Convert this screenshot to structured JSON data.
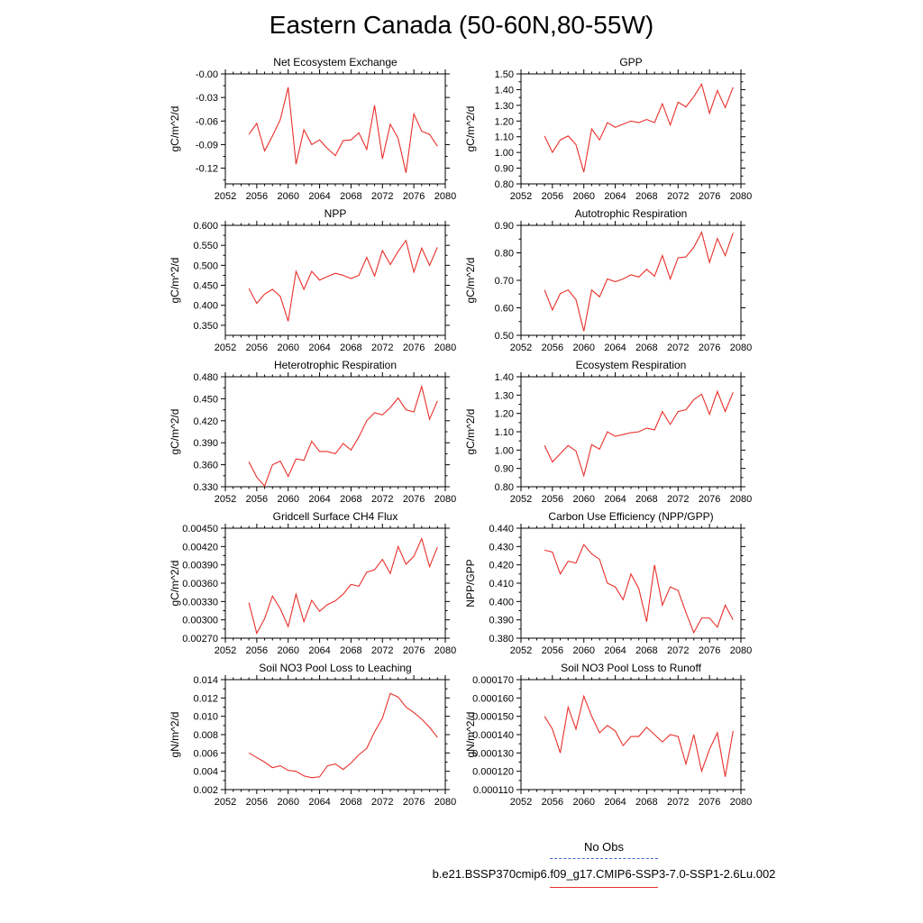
{
  "title": "Eastern Canada (50-60N,80-55W)",
  "legend": {
    "obs_label": "No Obs",
    "obs_color": "#4466dd",
    "run_label": "b.e21.BSSP370cmip6.f09_g17.CMIP6-SSP3-7.0-SSP1-2.6Lu.002",
    "run_color": "#e8302a"
  },
  "chart_data": [
    {
      "type": "line",
      "title": "Net Ecosystem Exchange",
      "ylabel": "gC/m^2/d",
      "xlim": [
        2052,
        2080
      ],
      "xticks": [
        "2052",
        "2056",
        "2060",
        "2064",
        "2068",
        "2072",
        "2076",
        "2080"
      ],
      "ylim": [
        -0.14,
        0.0
      ],
      "yticks": [
        "-0.12",
        "-0.09",
        "-0.06",
        "-0.03",
        "-0.00"
      ],
      "x": [
        2055,
        2056,
        2057,
        2058,
        2059,
        2060,
        2061,
        2062,
        2063,
        2064,
        2065,
        2066,
        2067,
        2068,
        2069,
        2070,
        2071,
        2072,
        2073,
        2074,
        2075,
        2076,
        2077,
        2078,
        2079
      ],
      "values": [
        -0.077,
        -0.063,
        -0.098,
        -0.079,
        -0.058,
        -0.017,
        -0.115,
        -0.071,
        -0.09,
        -0.084,
        -0.095,
        -0.104,
        -0.085,
        -0.084,
        -0.075,
        -0.096,
        -0.04,
        -0.108,
        -0.064,
        -0.082,
        -0.126,
        -0.051,
        -0.073,
        -0.077,
        -0.092
      ]
    },
    {
      "type": "line",
      "title": "GPP",
      "ylabel": "gC/m^2/d",
      "xlim": [
        2052,
        2080
      ],
      "xticks": [
        "2052",
        "2056",
        "2060",
        "2064",
        "2068",
        "2072",
        "2076",
        "2080"
      ],
      "ylim": [
        0.8,
        1.5
      ],
      "yticks": [
        "0.80",
        "0.90",
        "1.00",
        "1.10",
        "1.20",
        "1.30",
        "1.40",
        "1.50"
      ],
      "x": [
        2055,
        2056,
        2057,
        2058,
        2059,
        2060,
        2061,
        2062,
        2063,
        2064,
        2065,
        2066,
        2067,
        2068,
        2069,
        2070,
        2071,
        2072,
        2073,
        2074,
        2075,
        2076,
        2077,
        2078,
        2079
      ],
      "values": [
        1.105,
        1.0,
        1.08,
        1.105,
        1.05,
        0.875,
        1.15,
        1.08,
        1.19,
        1.16,
        1.18,
        1.2,
        1.19,
        1.21,
        1.19,
        1.31,
        1.175,
        1.32,
        1.29,
        1.355,
        1.435,
        1.25,
        1.395,
        1.285,
        1.415
      ]
    },
    {
      "type": "line",
      "title": "NPP",
      "ylabel": "gC/m^2/d",
      "xlim": [
        2052,
        2080
      ],
      "xticks": [
        "2052",
        "2056",
        "2060",
        "2064",
        "2068",
        "2072",
        "2076",
        "2080"
      ],
      "ylim": [
        0.325,
        0.6
      ],
      "yticks": [
        "0.350",
        "0.400",
        "0.450",
        "0.500",
        "0.550",
        "0.600"
      ],
      "x": [
        2055,
        2056,
        2057,
        2058,
        2059,
        2060,
        2061,
        2062,
        2063,
        2064,
        2065,
        2066,
        2067,
        2068,
        2069,
        2070,
        2071,
        2072,
        2073,
        2074,
        2075,
        2076,
        2077,
        2078,
        2079
      ],
      "values": [
        0.442,
        0.405,
        0.428,
        0.44,
        0.422,
        0.36,
        0.485,
        0.44,
        0.485,
        0.463,
        0.472,
        0.48,
        0.475,
        0.467,
        0.475,
        0.52,
        0.473,
        0.537,
        0.502,
        0.535,
        0.562,
        0.483,
        0.543,
        0.5,
        0.545
      ]
    },
    {
      "type": "line",
      "title": "Autotrophic Respiration",
      "ylabel": "gC/m^2/d",
      "xlim": [
        2052,
        2080
      ],
      "xticks": [
        "2052",
        "2056",
        "2060",
        "2064",
        "2068",
        "2072",
        "2076",
        "2080"
      ],
      "ylim": [
        0.5,
        0.9
      ],
      "yticks": [
        "0.50",
        "0.60",
        "0.70",
        "0.80",
        "0.90"
      ],
      "x": [
        2055,
        2056,
        2057,
        2058,
        2059,
        2060,
        2061,
        2062,
        2063,
        2064,
        2065,
        2066,
        2067,
        2068,
        2069,
        2070,
        2071,
        2072,
        2073,
        2074,
        2075,
        2076,
        2077,
        2078,
        2079
      ],
      "values": [
        0.665,
        0.592,
        0.652,
        0.665,
        0.63,
        0.515,
        0.665,
        0.64,
        0.705,
        0.695,
        0.705,
        0.72,
        0.712,
        0.74,
        0.715,
        0.79,
        0.705,
        0.782,
        0.785,
        0.82,
        0.875,
        0.765,
        0.852,
        0.79,
        0.872
      ]
    },
    {
      "type": "line",
      "title": "Heterotrophic Respiration",
      "ylabel": "gC/m^2/d",
      "xlim": [
        2052,
        2080
      ],
      "xticks": [
        "2052",
        "2056",
        "2060",
        "2064",
        "2068",
        "2072",
        "2076",
        "2080"
      ],
      "ylim": [
        0.33,
        0.48
      ],
      "yticks": [
        "0.330",
        "0.360",
        "0.390",
        "0.420",
        "0.450",
        "0.480"
      ],
      "x": [
        2055,
        2056,
        2057,
        2058,
        2059,
        2060,
        2061,
        2062,
        2063,
        2064,
        2065,
        2066,
        2067,
        2068,
        2069,
        2070,
        2071,
        2072,
        2073,
        2074,
        2075,
        2076,
        2077,
        2078,
        2079
      ],
      "values": [
        0.364,
        0.343,
        0.331,
        0.36,
        0.365,
        0.344,
        0.368,
        0.366,
        0.392,
        0.378,
        0.378,
        0.375,
        0.389,
        0.38,
        0.398,
        0.42,
        0.431,
        0.428,
        0.438,
        0.451,
        0.435,
        0.432,
        0.467,
        0.422,
        0.447
      ]
    },
    {
      "type": "line",
      "title": "Ecosystem Respiration",
      "ylabel": "gC/m^2/d",
      "xlim": [
        2052,
        2080
      ],
      "xticks": [
        "2052",
        "2056",
        "2060",
        "2064",
        "2068",
        "2072",
        "2076",
        "2080"
      ],
      "ylim": [
        0.8,
        1.4
      ],
      "yticks": [
        "0.80",
        "0.90",
        "1.00",
        "1.10",
        "1.20",
        "1.30",
        "1.40"
      ],
      "x": [
        2055,
        2056,
        2057,
        2058,
        2059,
        2060,
        2061,
        2062,
        2063,
        2064,
        2065,
        2066,
        2067,
        2068,
        2069,
        2070,
        2071,
        2072,
        2073,
        2074,
        2075,
        2076,
        2077,
        2078,
        2079
      ],
      "values": [
        1.025,
        0.935,
        0.98,
        1.025,
        0.995,
        0.86,
        1.03,
        1.005,
        1.1,
        1.075,
        1.085,
        1.095,
        1.1,
        1.12,
        1.11,
        1.21,
        1.14,
        1.21,
        1.22,
        1.275,
        1.305,
        1.195,
        1.32,
        1.21,
        1.315
      ]
    },
    {
      "type": "line",
      "title": "Gridcell Surface CH4 Flux",
      "ylabel": "gC/m^2/d",
      "xlim": [
        2052,
        2080
      ],
      "xticks": [
        "2052",
        "2056",
        "2060",
        "2064",
        "2068",
        "2072",
        "2076",
        "2080"
      ],
      "ylim": [
        0.0027,
        0.0045
      ],
      "yticks": [
        "0.00270",
        "0.00300",
        "0.00330",
        "0.00360",
        "0.00390",
        "0.00420",
        "0.00450"
      ],
      "x": [
        2055,
        2056,
        2057,
        2058,
        2059,
        2060,
        2061,
        2062,
        2063,
        2064,
        2065,
        2066,
        2067,
        2068,
        2069,
        2070,
        2071,
        2072,
        2073,
        2074,
        2075,
        2076,
        2077,
        2078,
        2079
      ],
      "values": [
        0.00328,
        0.00278,
        0.00302,
        0.00339,
        0.00318,
        0.00289,
        0.00342,
        0.00297,
        0.00332,
        0.00314,
        0.00325,
        0.00331,
        0.00342,
        0.00358,
        0.00355,
        0.00378,
        0.00382,
        0.00399,
        0.00376,
        0.0042,
        0.00391,
        0.00404,
        0.00433,
        0.00387,
        0.00419
      ]
    },
    {
      "type": "line",
      "title": "Carbon Use Efficiency (NPP/GPP)",
      "ylabel": "NPP/GPP",
      "xlim": [
        2052,
        2080
      ],
      "xticks": [
        "2052",
        "2056",
        "2060",
        "2064",
        "2068",
        "2072",
        "2076",
        "2080"
      ],
      "ylim": [
        0.38,
        0.44
      ],
      "yticks": [
        "0.380",
        "0.390",
        "0.400",
        "0.410",
        "0.420",
        "0.430",
        "0.440"
      ],
      "x": [
        2055,
        2056,
        2057,
        2058,
        2059,
        2060,
        2061,
        2062,
        2063,
        2064,
        2065,
        2066,
        2067,
        2068,
        2069,
        2070,
        2071,
        2072,
        2073,
        2074,
        2075,
        2076,
        2077,
        2078,
        2079
      ],
      "values": [
        0.428,
        0.427,
        0.415,
        0.422,
        0.421,
        0.431,
        0.426,
        0.423,
        0.41,
        0.408,
        0.401,
        0.415,
        0.407,
        0.389,
        0.42,
        0.398,
        0.408,
        0.406,
        0.394,
        0.383,
        0.391,
        0.391,
        0.386,
        0.398,
        0.39
      ]
    },
    {
      "type": "line",
      "title": "Soil NO3 Pool Loss to Leaching",
      "ylabel": "gN/m^2/d",
      "xlim": [
        2052,
        2080
      ],
      "xticks": [
        "2052",
        "2056",
        "2060",
        "2064",
        "2068",
        "2072",
        "2076",
        "2080"
      ],
      "ylim": [
        0.002,
        0.014
      ],
      "yticks": [
        "0.002",
        "0.004",
        "0.006",
        "0.008",
        "0.010",
        "0.012",
        "0.014"
      ],
      "x": [
        2055,
        2056,
        2057,
        2058,
        2059,
        2060,
        2061,
        2062,
        2063,
        2064,
        2065,
        2066,
        2067,
        2068,
        2069,
        2070,
        2071,
        2072,
        2073,
        2074,
        2075,
        2076,
        2077,
        2078,
        2079
      ],
      "values": [
        0.006,
        0.0055,
        0.005,
        0.0044,
        0.0046,
        0.0041,
        0.004,
        0.0035,
        0.0033,
        0.0034,
        0.0046,
        0.0048,
        0.0042,
        0.0049,
        0.0058,
        0.0065,
        0.0083,
        0.0098,
        0.0125,
        0.0121,
        0.011,
        0.0104,
        0.0097,
        0.0088,
        0.0077
      ]
    },
    {
      "type": "line",
      "title": "Soil NO3 Pool Loss to Runoff",
      "ylabel": "gN/m^2/d",
      "xlim": [
        2052,
        2080
      ],
      "xticks": [
        "2052",
        "2056",
        "2060",
        "2064",
        "2068",
        "2072",
        "2076",
        "2080"
      ],
      "ylim": [
        0.00011,
        0.00017
      ],
      "yticks": [
        "0.000110",
        "0.000120",
        "0.000130",
        "0.000140",
        "0.000150",
        "0.000160",
        "0.000170"
      ],
      "x": [
        2055,
        2056,
        2057,
        2058,
        2059,
        2060,
        2061,
        2062,
        2063,
        2064,
        2065,
        2066,
        2067,
        2068,
        2069,
        2070,
        2071,
        2072,
        2073,
        2074,
        2075,
        2076,
        2077,
        2078,
        2079
      ],
      "values": [
        0.00015,
        0.000143,
        0.00013,
        0.000155,
        0.000143,
        0.000161,
        0.00015,
        0.000141,
        0.000145,
        0.000142,
        0.000134,
        0.000139,
        0.000139,
        0.000144,
        0.00014,
        0.000136,
        0.00014,
        0.000139,
        0.000124,
        0.00014,
        0.00012,
        0.000132,
        0.000141,
        0.000117,
        0.000142
      ]
    }
  ]
}
